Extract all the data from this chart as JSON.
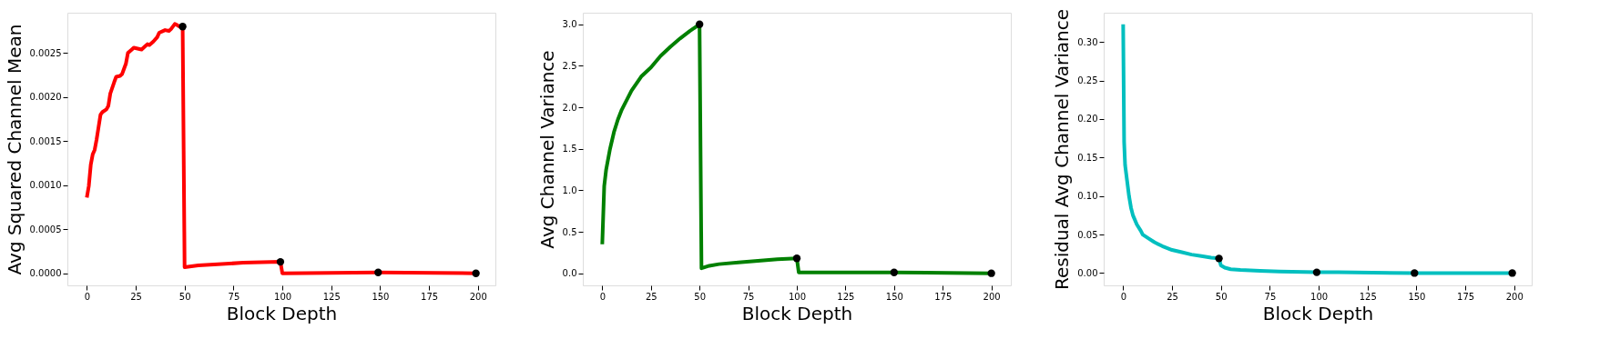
{
  "chart_data": [
    {
      "type": "line",
      "xlabel": "Block Depth",
      "ylabel": "Avg Squared Channel Mean",
      "xlim": [
        -9.95,
        208.95
      ],
      "xticks": [
        0,
        25,
        50,
        75,
        100,
        125,
        150,
        175,
        200
      ],
      "ylim": [
        -0.000137,
        0.002957
      ],
      "yticks": [
        {
          "value": 0,
          "label": "0.0000"
        },
        {
          "value": 0.0005,
          "label": "0.0005"
        },
        {
          "value": 0.001,
          "label": "0.0010"
        },
        {
          "value": 0.0015,
          "label": "0.0015"
        },
        {
          "value": 0.002,
          "label": "0.0020"
        },
        {
          "value": 0.0025,
          "label": "0.0025"
        }
      ],
      "grid": false,
      "series": [
        {
          "line_style": "solid",
          "color": "#ff0000",
          "x": [
            0,
            1,
            2,
            3,
            4,
            5,
            6,
            7,
            8,
            10,
            11,
            12,
            14,
            15,
            17,
            18,
            19,
            20,
            21,
            23,
            24,
            28,
            30,
            31,
            32,
            34,
            36,
            37,
            39,
            40,
            42,
            43,
            45,
            46,
            48,
            49,
            50,
            57,
            65,
            80,
            99,
            100,
            149,
            199
          ],
          "values": [
            0.00086,
            0.00099,
            0.00123,
            0.00135,
            0.0014,
            0.00152,
            0.00166,
            0.0018,
            0.00183,
            0.00186,
            0.0019,
            0.00204,
            0.00217,
            0.00223,
            0.00224,
            0.00226,
            0.00232,
            0.00238,
            0.0025,
            0.00254,
            0.00256,
            0.00254,
            0.00258,
            0.0026,
            0.00259,
            0.00263,
            0.00268,
            0.00273,
            0.00275,
            0.00276,
            0.00275,
            0.00277,
            0.00283,
            0.00282,
            0.00279,
            0.0028,
            7e-05,
            9e-05,
            0.0001,
            0.00012,
            0.00013,
            0.0,
            1e-05,
            0.0
          ]
        },
        {
          "type": "scatter",
          "color": "#000000",
          "marker": "circle",
          "x": [
            49,
            99,
            149,
            199
          ],
          "values": [
            0.0028,
            0.00013,
            1e-05,
            0.0
          ]
        }
      ]
    },
    {
      "type": "line",
      "xlabel": "Block Depth",
      "ylabel": "Avg Channel Variance",
      "xlim": [
        -10,
        210
      ],
      "xticks": [
        0,
        25,
        50,
        75,
        100,
        125,
        150,
        175,
        200
      ],
      "ylim": [
        -0.146,
        3.14
      ],
      "yticks": [
        {
          "value": 0,
          "label": "0.0"
        },
        {
          "value": 0.5,
          "label": "0.5"
        },
        {
          "value": 1,
          "label": "1.0"
        },
        {
          "value": 1.5,
          "label": "1.5"
        },
        {
          "value": 2,
          "label": "2.0"
        },
        {
          "value": 2.5,
          "label": "2.5"
        },
        {
          "value": 3,
          "label": "3.0"
        }
      ],
      "grid": false,
      "series": [
        {
          "line_style": "solid",
          "color": "#008000",
          "x": [
            0,
            1,
            2,
            4,
            6,
            8,
            10,
            15,
            20,
            25,
            30,
            35,
            40,
            45,
            50,
            51,
            55,
            60,
            70,
            80,
            90,
            100,
            101,
            150,
            200
          ],
          "values": [
            0.35,
            1.05,
            1.25,
            1.5,
            1.7,
            1.85,
            1.97,
            2.2,
            2.37,
            2.48,
            2.62,
            2.73,
            2.83,
            2.92,
            3.0,
            0.06,
            0.09,
            0.11,
            0.13,
            0.15,
            0.17,
            0.18,
            0.01,
            0.01,
            0.0
          ]
        },
        {
          "type": "scatter",
          "color": "#000000",
          "marker": "circle",
          "x": [
            50,
            100,
            150,
            200
          ],
          "values": [
            3.0,
            0.18,
            0.01,
            0.0
          ]
        }
      ]
    },
    {
      "type": "line",
      "xlabel": "Block Depth",
      "ylabel": "Residual Avg Channel Variance",
      "xlim": [
        -9.95,
        208.95
      ],
      "xticks": [
        0,
        25,
        50,
        75,
        100,
        125,
        150,
        175,
        200
      ],
      "ylim": [
        -0.016,
        0.338
      ],
      "yticks": [
        {
          "value": 0,
          "label": "0.00"
        },
        {
          "value": 0.05,
          "label": "0.05"
        },
        {
          "value": 0.1,
          "label": "0.10"
        },
        {
          "value": 0.15,
          "label": "0.15"
        },
        {
          "value": 0.2,
          "label": "0.20"
        },
        {
          "value": 0.25,
          "label": "0.25"
        },
        {
          "value": 0.3,
          "label": "0.30"
        }
      ],
      "grid": false,
      "series": [
        {
          "line_style": "solid",
          "color": "#00bfbf",
          "x": [
            0,
            0.5,
            1,
            2,
            3,
            4,
            5,
            7,
            9,
            10,
            13,
            16,
            20,
            25,
            30,
            35,
            40,
            45,
            49,
            50,
            52,
            55,
            60,
            70,
            80,
            99,
            110,
            149,
            199
          ],
          "values": [
            0.323,
            0.17,
            0.14,
            0.12,
            0.1,
            0.085,
            0.075,
            0.063,
            0.055,
            0.05,
            0.045,
            0.04,
            0.035,
            0.03,
            0.027,
            0.024,
            0.022,
            0.02,
            0.019,
            0.01,
            0.007,
            0.005,
            0.004,
            0.003,
            0.002,
            0.001,
            0.001,
            0.0,
            0.0
          ]
        },
        {
          "type": "scatter",
          "color": "#000000",
          "marker": "circle",
          "x": [
            49,
            99,
            149,
            199
          ],
          "values": [
            0.019,
            0.001,
            0.0,
            0.0
          ]
        }
      ]
    }
  ]
}
